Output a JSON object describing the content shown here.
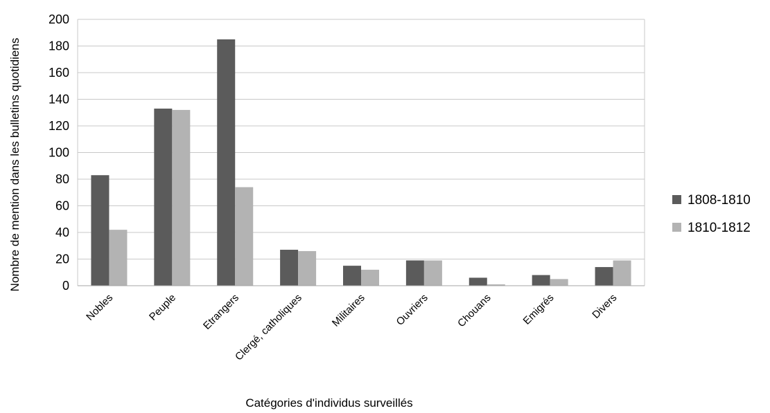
{
  "chart_data": {
    "type": "bar",
    "title": "",
    "xlabel": "Catégories d'individus surveillés",
    "ylabel": "Nombre de mention dans les bulletins quotidiens",
    "ylim": [
      0,
      200
    ],
    "yticks": [
      0,
      20,
      40,
      60,
      80,
      100,
      120,
      140,
      160,
      180,
      200
    ],
    "grid": true,
    "legend_position": "right",
    "categories": [
      "Nobles",
      "Peuple",
      "Etrangers",
      "Clergé, catholiques",
      "Militaires",
      "Ouvriers",
      "Chouans",
      "Emigrés",
      "Divers"
    ],
    "series": [
      {
        "name": "1808-1810",
        "color": "#5b5b5b",
        "values": [
          83,
          133,
          185,
          27,
          15,
          19,
          6,
          8,
          14
        ]
      },
      {
        "name": "1810-1812",
        "color": "#b3b3b3",
        "values": [
          42,
          132,
          74,
          26,
          12,
          19,
          1,
          5,
          19
        ]
      }
    ]
  }
}
